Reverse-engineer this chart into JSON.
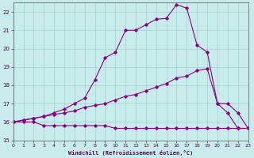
{
  "xlabel": "Windchill (Refroidissement éolien,°C)",
  "background_color": "#c8ecec",
  "line_color": "#880088",
  "xlim": [
    0,
    23
  ],
  "ylim": [
    15,
    22.5
  ],
  "xticks": [
    0,
    1,
    2,
    3,
    4,
    5,
    6,
    7,
    8,
    9,
    10,
    11,
    12,
    13,
    14,
    15,
    16,
    17,
    18,
    19,
    20,
    21,
    22,
    23
  ],
  "yticks": [
    15,
    16,
    17,
    18,
    19,
    20,
    21,
    22
  ],
  "line1_x": [
    0,
    1,
    2,
    3,
    4,
    5,
    6,
    7,
    8,
    9,
    10,
    11,
    12,
    13,
    14,
    15,
    16,
    17,
    18,
    19,
    20,
    21,
    22,
    23
  ],
  "line1_y": [
    16.0,
    16.0,
    16.0,
    15.8,
    15.8,
    15.8,
    15.8,
    15.8,
    15.8,
    15.8,
    15.65,
    15.65,
    15.65,
    15.65,
    15.65,
    15.65,
    15.65,
    15.65,
    15.65,
    15.65,
    15.65,
    15.65,
    15.65,
    15.65
  ],
  "line2_x": [
    0,
    1,
    2,
    3,
    4,
    5,
    6,
    7,
    8,
    9,
    10,
    11,
    12,
    13,
    14,
    15,
    16,
    17,
    18,
    19,
    20,
    21,
    22,
    23
  ],
  "line2_y": [
    16.0,
    16.1,
    16.2,
    16.3,
    16.4,
    16.5,
    16.6,
    16.8,
    16.9,
    17.0,
    17.2,
    17.4,
    17.5,
    17.7,
    17.9,
    18.1,
    18.4,
    18.5,
    18.8,
    18.9,
    17.0,
    17.0,
    16.5,
    15.65
  ],
  "line3_x": [
    0,
    1,
    2,
    3,
    4,
    5,
    6,
    7,
    8,
    9,
    10,
    11,
    12,
    13,
    14,
    15,
    16,
    17,
    18,
    19,
    20,
    21,
    22,
    23
  ],
  "line3_y": [
    16.0,
    16.1,
    16.2,
    16.3,
    16.5,
    16.7,
    17.0,
    17.3,
    18.3,
    19.5,
    19.8,
    21.0,
    21.0,
    21.3,
    21.6,
    21.65,
    22.4,
    22.2,
    20.2,
    19.8,
    17.0,
    16.5,
    15.65,
    15.65
  ],
  "figsize": [
    3.2,
    2.0
  ],
  "dpi": 100
}
